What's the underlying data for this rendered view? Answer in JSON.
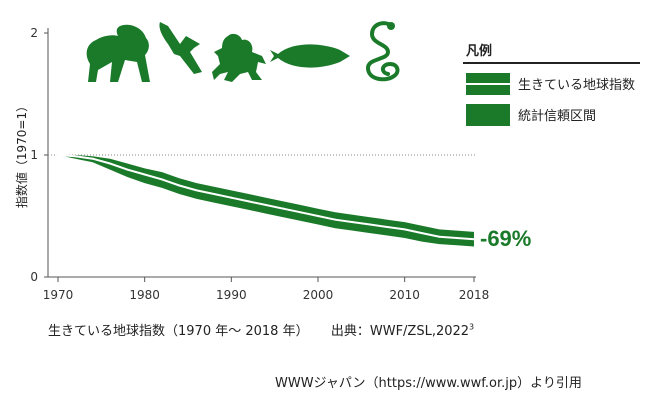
{
  "chart_data": {
    "type": "line",
    "ylabel": "指数値（1970=1）",
    "xlim": [
      1970,
      2018
    ],
    "ylim": [
      0,
      2
    ],
    "x_ticks": [
      "1970",
      "1980",
      "1990",
      "2000",
      "2010",
      "2018"
    ],
    "y_ticks": [
      "0",
      "1",
      "2"
    ],
    "reference_line_y": 1,
    "series": [
      {
        "name": "生きている地球指数",
        "x": [
          1970,
          1972,
          1974,
          1976,
          1978,
          1980,
          1982,
          1984,
          1986,
          1988,
          1990,
          1992,
          1994,
          1996,
          1998,
          2000,
          2002,
          2004,
          2006,
          2008,
          2010,
          2012,
          2014,
          2016,
          2018
        ],
        "values": [
          1.0,
          0.99,
          0.97,
          0.93,
          0.88,
          0.84,
          0.8,
          0.75,
          0.71,
          0.68,
          0.65,
          0.62,
          0.59,
          0.56,
          0.53,
          0.5,
          0.47,
          0.45,
          0.43,
          0.41,
          0.39,
          0.36,
          0.33,
          0.32,
          0.31
        ],
        "lower": [
          1.0,
          0.97,
          0.94,
          0.88,
          0.82,
          0.77,
          0.73,
          0.68,
          0.64,
          0.61,
          0.58,
          0.55,
          0.52,
          0.49,
          0.46,
          0.43,
          0.4,
          0.38,
          0.36,
          0.34,
          0.32,
          0.29,
          0.27,
          0.26,
          0.25
        ],
        "upper": [
          1.0,
          1.0,
          0.99,
          0.97,
          0.93,
          0.89,
          0.86,
          0.81,
          0.77,
          0.74,
          0.71,
          0.68,
          0.65,
          0.62,
          0.59,
          0.56,
          0.53,
          0.51,
          0.49,
          0.47,
          0.45,
          0.42,
          0.39,
          0.38,
          0.37
        ]
      }
    ],
    "end_label": "-69%",
    "legend": {
      "title": "凡例",
      "items": [
        "生きている地球指数",
        "統計信頼区間"
      ],
      "position": "top-right"
    },
    "colors": {
      "line": "#ffffff",
      "band": "#1a7a2a",
      "dotted": "#888888",
      "axis": "#555555"
    },
    "icons": [
      "gorilla-icon",
      "bird-icon",
      "frog-icon",
      "fish-icon",
      "snake-icon"
    ]
  },
  "caption": {
    "title": "生きている地球指数（1970 年～ 2018 年）",
    "source": "出典：WWF/ZSL,2022",
    "source_sup": "3",
    "credit": "WWWジャパン（https://www.wwf.or.jp）より引用"
  }
}
